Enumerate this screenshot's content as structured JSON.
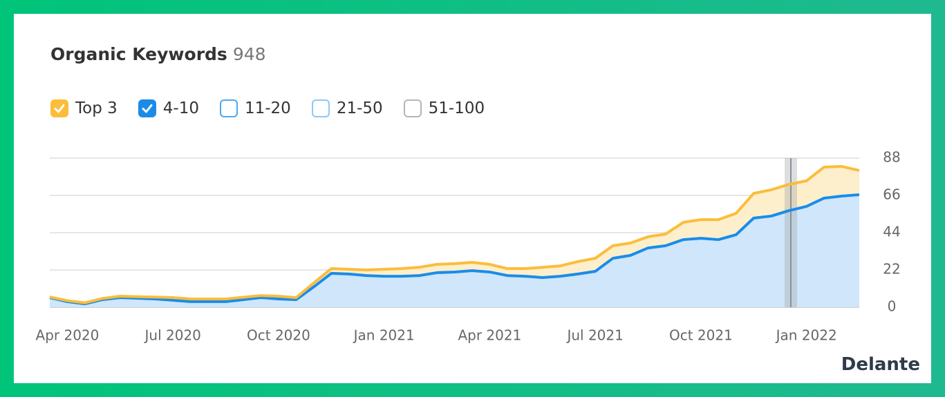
{
  "chart_data": {
    "type": "stacked-area",
    "title": "Organic Keywords",
    "title_value": 948,
    "series": [
      {
        "name": "Top 3",
        "color": "#fbbd3b",
        "fill": "#fdefcc",
        "values": [
          0.4,
          0.6,
          0.6,
          0.7,
          0.8,
          0.9,
          1.1,
          1.6,
          1.6,
          1.6,
          1.6,
          1.4,
          1.2,
          1.6,
          1.2,
          2.3,
          2.8,
          2.8,
          3.3,
          4.1,
          4.5,
          4.9,
          4.9,
          4.9,
          4.9,
          4.5,
          4.1,
          4.5,
          6.1,
          6.1,
          7.3,
          7.7,
          7.4,
          7.3,
          6.6,
          6.9,
          10.2,
          11,
          11.8,
          12.6,
          14.6,
          15.5,
          15.5,
          15.1,
          18.3,
          17.5,
          14.3
        ]
      },
      {
        "name": "4-10",
        "color": "#1a8ce8",
        "fill": "#cfe6fb",
        "values": [
          5.7,
          3.3,
          2,
          4.5,
          5.7,
          5.3,
          4.9,
          4.1,
          3.3,
          3.3,
          3.3,
          4.5,
          5.7,
          4.9,
          4.5,
          12,
          20,
          19.6,
          18.7,
          18.3,
          18.3,
          18.7,
          20.4,
          20.8,
          21.6,
          20.8,
          18.7,
          18.3,
          17.5,
          18.3,
          19.6,
          21.2,
          28.9,
          30.6,
          35,
          36.3,
          39.9,
          40.7,
          39.9,
          42.8,
          52.6,
          53.8,
          57,
          59.5,
          64.4,
          65.6,
          66.4
        ]
      }
    ],
    "unchecked_series": [
      {
        "name": "11-20",
        "color": "#4aa8f0"
      },
      {
        "name": "21-50",
        "color": "#8cc8f5"
      },
      {
        "name": "51-100",
        "color": "#b5b5b5"
      }
    ],
    "categories": [
      null,
      "Apr 2020",
      null,
      null,
      null,
      null,
      null,
      "Jul 2020",
      null,
      null,
      null,
      null,
      null,
      "Oct 2020",
      null,
      null,
      null,
      null,
      null,
      "Jan 2021",
      null,
      null,
      null,
      null,
      null,
      "Apr 2021",
      null,
      null,
      null,
      null,
      null,
      "Jul 2021",
      null,
      null,
      null,
      null,
      null,
      "Oct 2021",
      null,
      null,
      null,
      null,
      null,
      "Jan 2022",
      null,
      null,
      null
    ],
    "ylim": [
      0,
      88
    ],
    "yticks": [
      0,
      22,
      44,
      66,
      88
    ],
    "grid": true,
    "brand": "Delante"
  }
}
